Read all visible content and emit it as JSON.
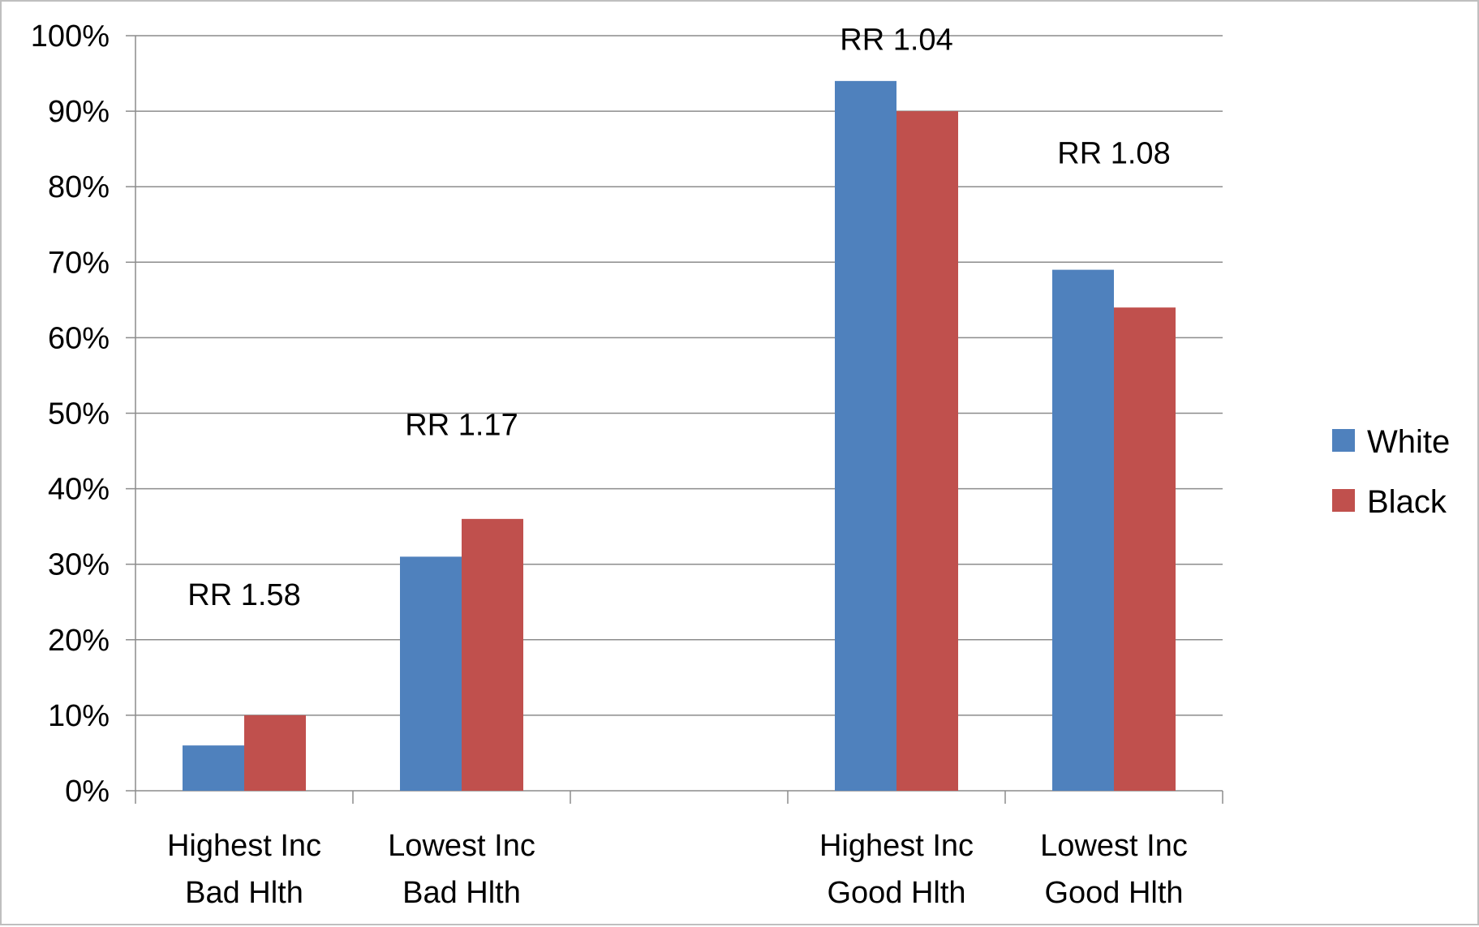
{
  "chart_data": {
    "type": "bar",
    "categories": [
      [
        "Highest Inc",
        "Bad Hlth"
      ],
      [
        "Lowest Inc",
        "Bad Hlth"
      ],
      [
        "",
        ""
      ],
      [
        "Highest Inc",
        "Good Hlth"
      ],
      [
        "Lowest Inc",
        "Good Hlth"
      ]
    ],
    "series": [
      {
        "name": "White",
        "color": "#4f81bd",
        "values": [
          6,
          31,
          null,
          94,
          69
        ]
      },
      {
        "name": "Black",
        "color": "#c0504d",
        "values": [
          10,
          36,
          null,
          90,
          64
        ]
      }
    ],
    "ylim": [
      0,
      100
    ],
    "yticks": [
      0,
      10,
      20,
      30,
      40,
      50,
      60,
      70,
      80,
      90,
      100
    ],
    "ytick_format": "percent",
    "grid": true,
    "legend": "right",
    "annotations": [
      {
        "text": "RR 1.58",
        "category": 0,
        "y": 26
      },
      {
        "text": "RR  1.17",
        "category": 1,
        "y": 48.5
      },
      {
        "text": "RR 1.04",
        "category": 3,
        "y": 99.5
      },
      {
        "text": "RR 1.08",
        "category": 4,
        "y": 84.5
      }
    ]
  }
}
